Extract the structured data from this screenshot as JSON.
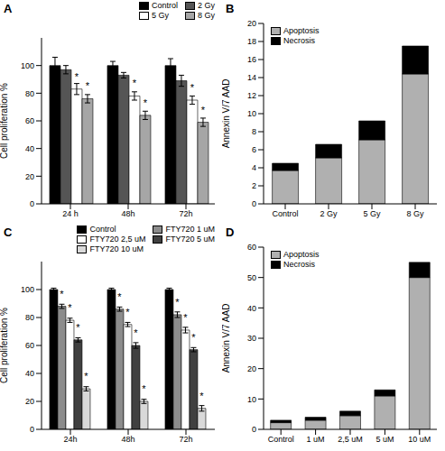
{
  "chart_data": [
    {
      "type": "bar",
      "title": "A",
      "y_label": "Cell proliferation %",
      "categories": [
        "24 h",
        "48h",
        "72h"
      ],
      "series": [
        {
          "name": "Control",
          "color": "#000000",
          "values": [
            100,
            100,
            100
          ],
          "errors": [
            6,
            3,
            5
          ],
          "significant": [
            false,
            false,
            false
          ]
        },
        {
          "name": "2 Gy",
          "color": "#555555",
          "values": [
            97,
            93,
            89
          ],
          "errors": [
            3,
            2,
            4
          ],
          "significant": [
            false,
            false,
            false
          ]
        },
        {
          "name": "5 Gy",
          "color": "#ffffff",
          "values": [
            83,
            78,
            75
          ],
          "errors": [
            4,
            3,
            3
          ],
          "significant": [
            true,
            true,
            true
          ]
        },
        {
          "name": "8 Gy",
          "color": "#a6a6a6",
          "values": [
            76,
            64,
            59
          ],
          "errors": [
            3,
            3,
            3
          ],
          "significant": [
            true,
            true,
            true
          ]
        }
      ],
      "annotation": "*",
      "ylim": [
        0,
        120
      ],
      "yticks": [
        0,
        20,
        40,
        60,
        80,
        100
      ],
      "legend": "upper right"
    },
    {
      "type": "bar",
      "title": "B",
      "y_label": "Annexin V/7 AAD",
      "stacked": true,
      "categories": [
        "Control",
        "2 Gy",
        "5 Gy",
        "8 Gy"
      ],
      "series": [
        {
          "name": "Apoptosis",
          "color": "#b0b0b0",
          "values": [
            3.7,
            5.1,
            7.1,
            14.4
          ]
        },
        {
          "name": "Necrosis",
          "color": "#000000",
          "values": [
            0.8,
            1.5,
            2.1,
            3.1
          ]
        }
      ],
      "ylim": [
        0,
        20
      ],
      "yticks": [
        0,
        2,
        4,
        6,
        8,
        10,
        12,
        14,
        16,
        18,
        20
      ],
      "legend": "upper left"
    },
    {
      "type": "bar",
      "title": "C",
      "y_label": "Cell proliferation %",
      "categories": [
        "24h",
        "48h",
        "72h"
      ],
      "series": [
        {
          "name": "Control",
          "color": "#000000",
          "values": [
            100,
            100,
            100
          ],
          "errors": [
            1,
            1,
            1
          ],
          "significant": [
            false,
            false,
            false
          ]
        },
        {
          "name": "FTY720 1 uM",
          "color": "#8c8c8c",
          "values": [
            88,
            86,
            82
          ],
          "errors": [
            1.5,
            1.5,
            2
          ],
          "significant": [
            true,
            true,
            true
          ]
        },
        {
          "name": "FTY720 2,5 uM",
          "color": "#ffffff",
          "values": [
            78,
            75,
            71
          ],
          "errors": [
            1.5,
            1.5,
            2
          ],
          "significant": [
            true,
            true,
            true
          ]
        },
        {
          "name": "FTY720 5 uM",
          "color": "#404040",
          "values": [
            64,
            60,
            57
          ],
          "errors": [
            1.5,
            2,
            1.5
          ],
          "significant": [
            true,
            true,
            true
          ]
        },
        {
          "name": "FTY720 10 uM",
          "color": "#d9d9d9",
          "values": [
            29,
            20,
            15
          ],
          "errors": [
            1.5,
            1.5,
            2
          ],
          "significant": [
            true,
            true,
            true
          ]
        }
      ],
      "annotation": "*",
      "ylim": [
        0,
        120
      ],
      "yticks": [
        0,
        20,
        40,
        60,
        80,
        100
      ],
      "legend": "upper right"
    },
    {
      "type": "bar",
      "title": "D",
      "y_label": "Annexin V/7 AAD",
      "stacked": true,
      "categories": [
        "Control",
        "1 uM",
        "2,5 uM",
        "5 uM",
        "10 uM"
      ],
      "series": [
        {
          "name": "Apoptosis",
          "color": "#b0b0b0",
          "values": [
            2.2,
            3,
            4.5,
            11,
            50
          ]
        },
        {
          "name": "Necrosis",
          "color": "#000000",
          "values": [
            0.8,
            1,
            1.5,
            2,
            5
          ]
        }
      ],
      "ylim": [
        0,
        60
      ],
      "yticks": [
        0,
        10,
        20,
        30,
        40,
        50,
        60
      ],
      "legend": "upper left"
    }
  ]
}
